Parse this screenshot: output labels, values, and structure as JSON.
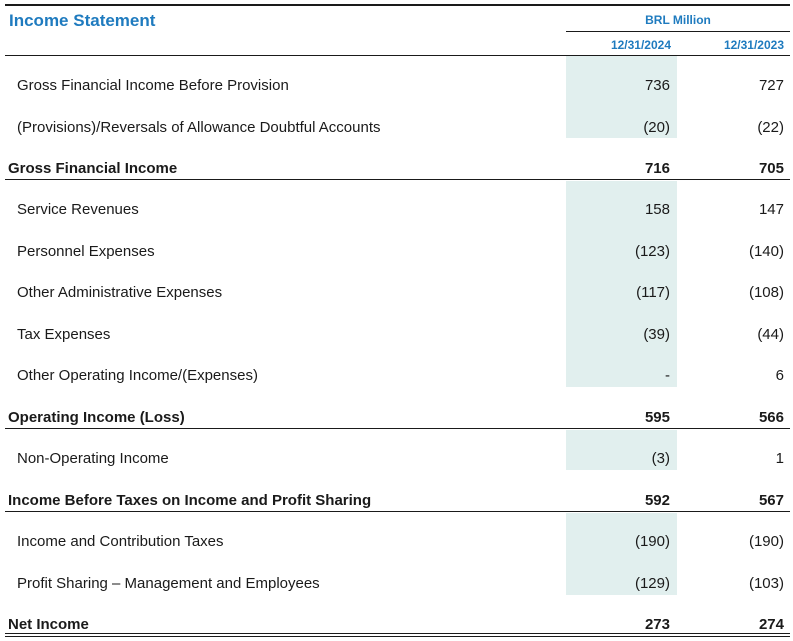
{
  "statement": {
    "title": "Income Statement",
    "currency_label": "BRL Million",
    "columns": [
      "12/31/2024",
      "12/31/2023"
    ]
  },
  "rows": [
    {
      "label": "Gross Financial Income Before Provision",
      "v2024": "736",
      "v2023": "727",
      "total": false
    },
    {
      "label": "(Provisions)/Reversals of Allowance Doubtful Accounts",
      "v2024": "(20)",
      "v2023": "(22)",
      "total": false
    },
    {
      "label": "Gross Financial Income",
      "v2024": "716",
      "v2023": "705",
      "total": true
    },
    {
      "label": "Service Revenues",
      "v2024": "158",
      "v2023": "147",
      "total": false
    },
    {
      "label": "Personnel Expenses",
      "v2024": "(123)",
      "v2023": "(140)",
      "total": false
    },
    {
      "label": "Other Administrative Expenses",
      "v2024": "(117)",
      "v2023": "(108)",
      "total": false
    },
    {
      "label": "Tax Expenses",
      "v2024": "(39)",
      "v2023": "(44)",
      "total": false
    },
    {
      "label": "Other Operating Income/(Expenses)",
      "v2024": "-",
      "v2023": "6",
      "total": false
    },
    {
      "label": "Operating Income (Loss)",
      "v2024": "595",
      "v2023": "566",
      "total": true
    },
    {
      "label": "Non-Operating Income",
      "v2024": "(3)",
      "v2023": "1",
      "total": false
    },
    {
      "label": "Income Before Taxes on Income and Profit Sharing",
      "v2024": "592",
      "v2023": "567",
      "total": true
    },
    {
      "label": "Income and Contribution Taxes",
      "v2024": "(190)",
      "v2023": "(190)",
      "total": false
    },
    {
      "label": "Profit Sharing – Management and Employees",
      "v2024": "(129)",
      "v2023": "(103)",
      "total": false
    },
    {
      "label": "Net Income",
      "v2024": "273",
      "v2023": "274",
      "total": true
    }
  ],
  "colors": {
    "accent": "#1f7bbf",
    "highlight": "#e1efee",
    "text": "#1a1a1a"
  }
}
